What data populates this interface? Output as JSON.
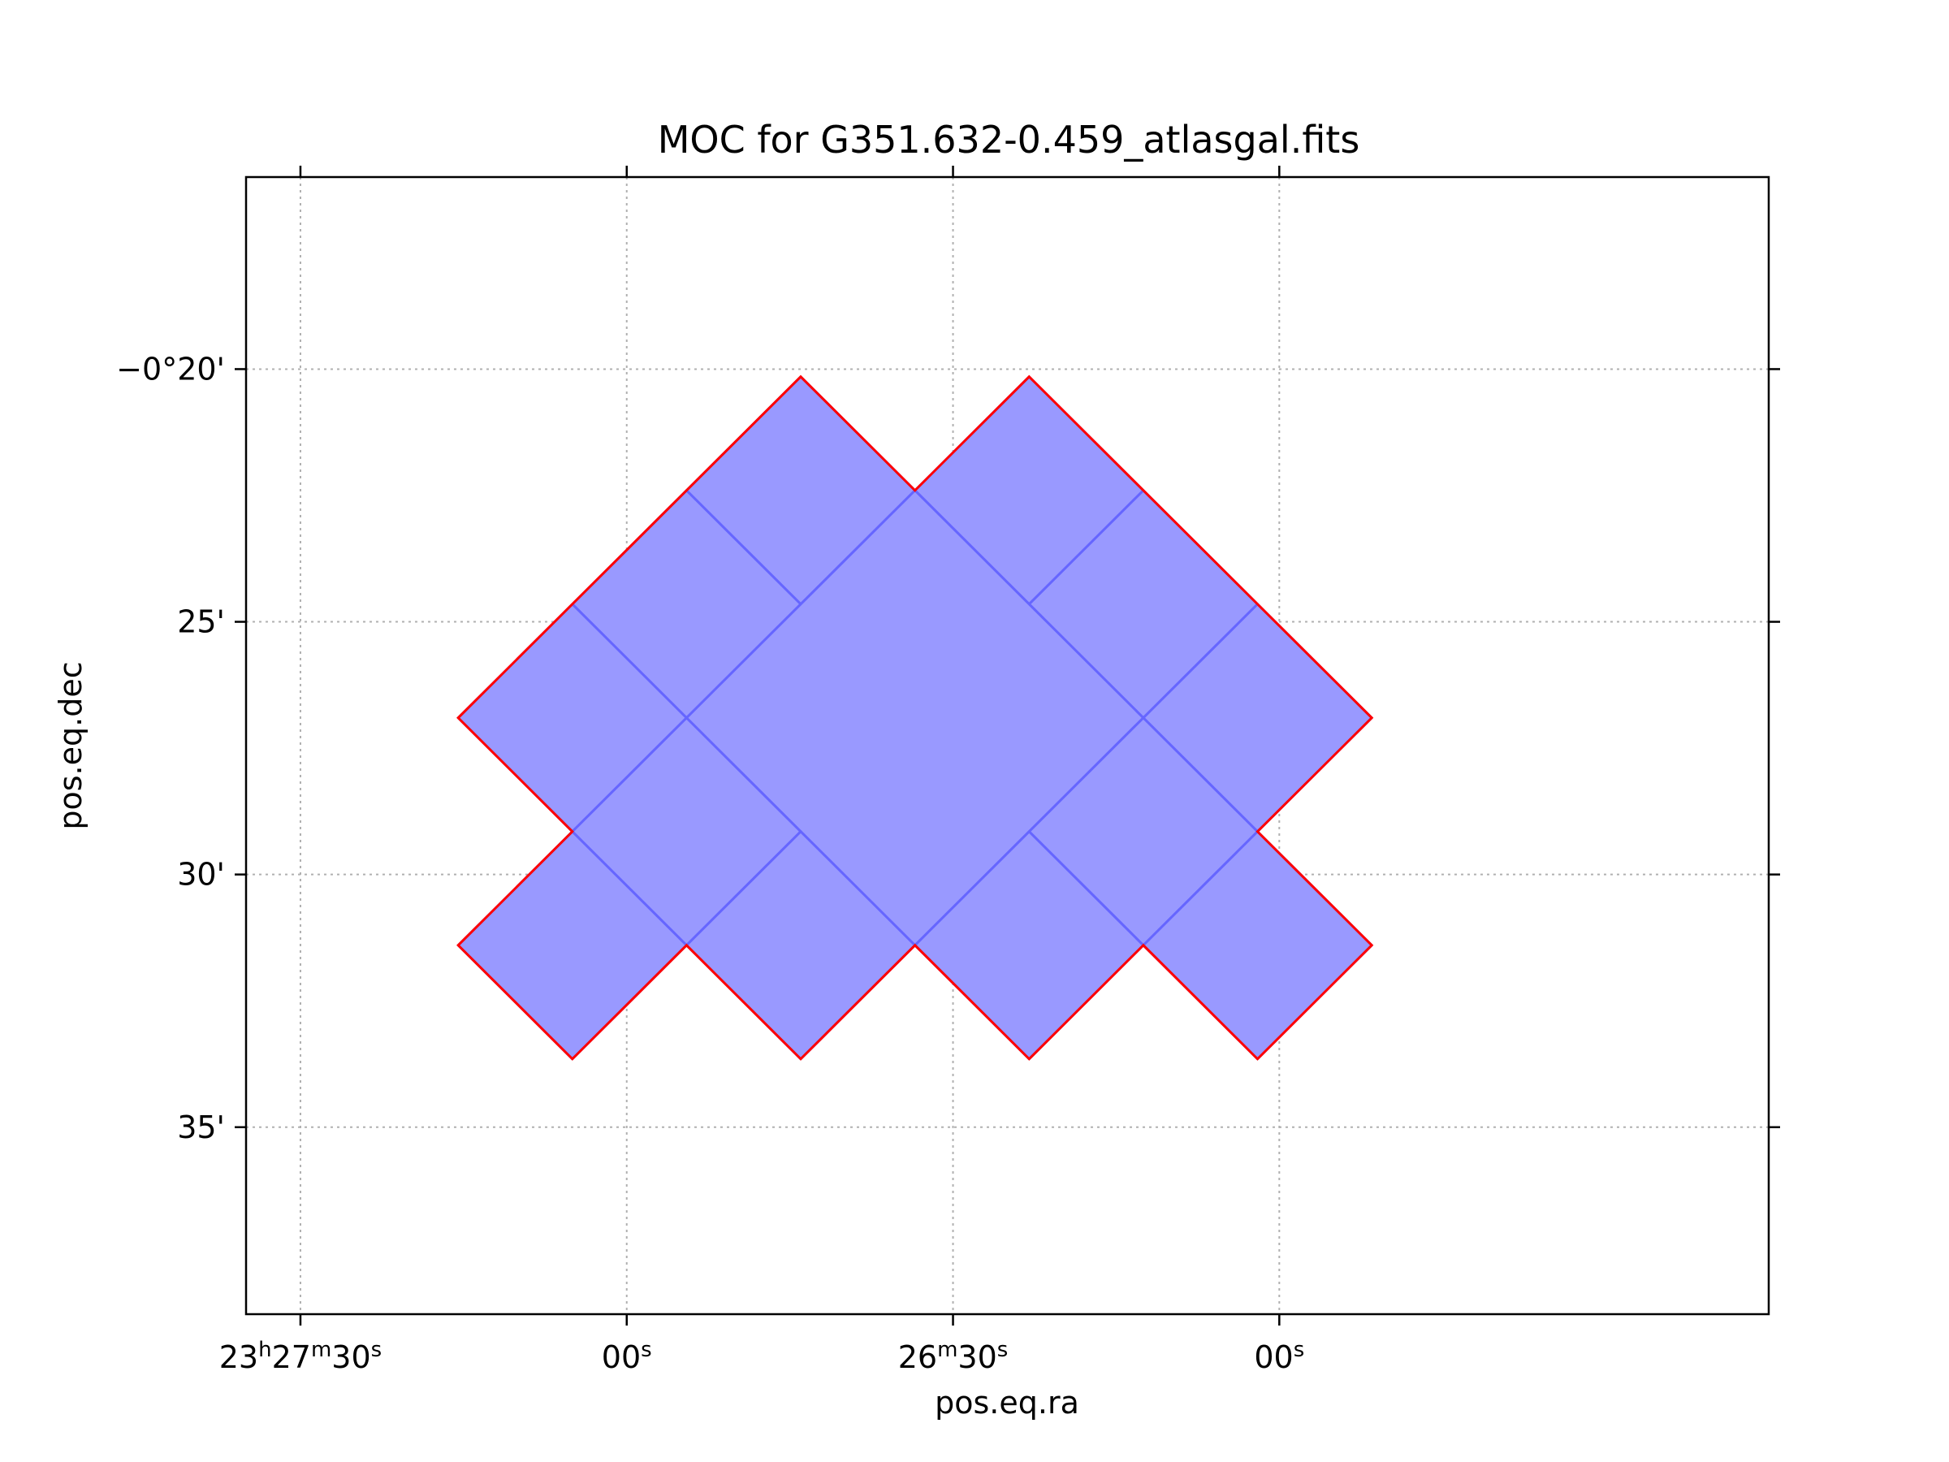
{
  "chart_data": {
    "type": "other",
    "title": "MOC for G351.632-0.459_atlasgal.fits",
    "xlabel": "pos.eq.ra",
    "ylabel": "pos.eq.dec",
    "grid": true,
    "xlim_seconds_offset": [
      -105,
      35
    ],
    "ylim_arcmin_offset": [
      -16.2,
      -38.7
    ],
    "x_ticks": [
      {
        "value": -100,
        "parts": [
          {
            "t": "23"
          },
          {
            "t": "h",
            "sup": true
          },
          {
            "t": "27"
          },
          {
            "t": "m",
            "sup": true
          },
          {
            "t": "30"
          },
          {
            "t": "s",
            "sup": true
          }
        ]
      },
      {
        "value": -70,
        "parts": [
          {
            "t": "00"
          },
          {
            "t": "s",
            "sup": true
          }
        ]
      },
      {
        "value": -40,
        "parts": [
          {
            "t": "26"
          },
          {
            "t": "m",
            "sup": true
          },
          {
            "t": "30"
          },
          {
            "t": "s",
            "sup": true
          }
        ]
      },
      {
        "value": -10,
        "parts": [
          {
            "t": "00"
          },
          {
            "t": "s",
            "sup": true
          }
        ]
      }
    ],
    "y_ticks": [
      {
        "value": -20,
        "label": "−0°20'"
      },
      {
        "value": -25,
        "label": "25'"
      },
      {
        "value": -30,
        "label": "30'"
      },
      {
        "value": -35,
        "label": "35'"
      }
    ],
    "fill_color": "#9999ff",
    "inner_edge_color": "#6666ff",
    "outline_color": "#ff0000",
    "cells": [
      [
        [
          -54,
          -20.15
        ],
        [
          -43.5,
          -22.4
        ],
        [
          -54,
          -24.65
        ],
        [
          -64.5,
          -22.4
        ]
      ],
      [
        [
          -33,
          -20.15
        ],
        [
          -22.5,
          -22.4
        ],
        [
          -33,
          -24.65
        ],
        [
          -43.5,
          -22.4
        ]
      ],
      [
        [
          -64.5,
          -22.4
        ],
        [
          -54,
          -24.65
        ],
        [
          -64.5,
          -26.9
        ],
        [
          -75,
          -24.65
        ]
      ],
      [
        [
          -22.5,
          -22.4
        ],
        [
          -12,
          -24.65
        ],
        [
          -22.5,
          -26.9
        ],
        [
          -33,
          -24.65
        ]
      ],
      [
        [
          -75,
          -24.65
        ],
        [
          -64.5,
          -26.9
        ],
        [
          -75,
          -29.15
        ],
        [
          -85.5,
          -26.9
        ]
      ],
      [
        [
          -12,
          -24.65
        ],
        [
          -1.5,
          -26.9
        ],
        [
          -12,
          -29.15
        ],
        [
          -22.5,
          -26.9
        ]
      ],
      [
        [
          -43.5,
          -22.4
        ],
        [
          -22.5,
          -26.9
        ],
        [
          -43.5,
          -31.4
        ],
        [
          -64.5,
          -26.9
        ]
      ],
      [
        [
          -64.5,
          -26.9
        ],
        [
          -54,
          -29.15
        ],
        [
          -64.5,
          -31.4
        ],
        [
          -75,
          -29.15
        ]
      ],
      [
        [
          -22.5,
          -26.9
        ],
        [
          -12,
          -29.15
        ],
        [
          -22.5,
          -31.4
        ],
        [
          -33,
          -29.15
        ]
      ],
      [
        [
          -75,
          -29.15
        ],
        [
          -64.5,
          -31.4
        ],
        [
          -75,
          -33.65
        ],
        [
          -85.5,
          -31.4
        ]
      ],
      [
        [
          -54,
          -29.15
        ],
        [
          -43.5,
          -31.4
        ],
        [
          -54,
          -33.65
        ],
        [
          -64.5,
          -31.4
        ]
      ],
      [
        [
          -33,
          -29.15
        ],
        [
          -22.5,
          -31.4
        ],
        [
          -33,
          -33.65
        ],
        [
          -43.5,
          -31.4
        ]
      ],
      [
        [
          -12,
          -29.15
        ],
        [
          -1.5,
          -31.4
        ],
        [
          -12,
          -33.65
        ],
        [
          -22.5,
          -31.4
        ]
      ]
    ],
    "outline": [
      [
        -54,
        -20.15
      ],
      [
        -43.5,
        -22.4
      ],
      [
        -33,
        -20.15
      ],
      [
        -1.5,
        -26.9
      ],
      [
        -12,
        -29.15
      ],
      [
        -1.5,
        -31.4
      ],
      [
        -12,
        -33.65
      ],
      [
        -22.5,
        -31.4
      ],
      [
        -33,
        -33.65
      ],
      [
        -43.5,
        -31.4
      ],
      [
        -54,
        -33.65
      ],
      [
        -64.5,
        -31.4
      ],
      [
        -75,
        -33.65
      ],
      [
        -85.5,
        -31.4
      ],
      [
        -75,
        -29.15
      ],
      [
        -85.5,
        -26.9
      ]
    ]
  }
}
